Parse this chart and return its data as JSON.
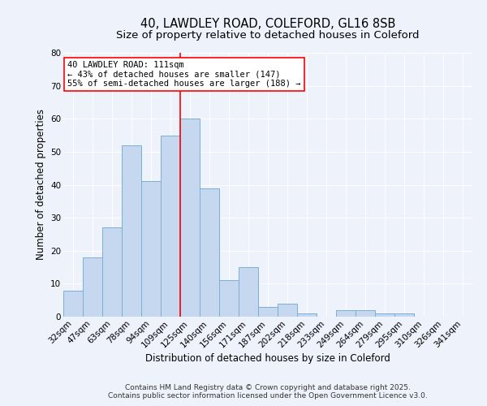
{
  "title_line1": "40, LAWDLEY ROAD, COLEFORD, GL16 8SB",
  "title_line2": "Size of property relative to detached houses in Coleford",
  "xlabel": "Distribution of detached houses by size in Coleford",
  "ylabel": "Number of detached properties",
  "categories": [
    "32sqm",
    "47sqm",
    "63sqm",
    "78sqm",
    "94sqm",
    "109sqm",
    "125sqm",
    "140sqm",
    "156sqm",
    "171sqm",
    "187sqm",
    "202sqm",
    "218sqm",
    "233sqm",
    "249sqm",
    "264sqm",
    "279sqm",
    "295sqm",
    "310sqm",
    "326sqm",
    "341sqm"
  ],
  "values": [
    8,
    18,
    27,
    52,
    41,
    55,
    60,
    39,
    11,
    15,
    3,
    4,
    1,
    0,
    2,
    2,
    1,
    1,
    0,
    0,
    0
  ],
  "bar_color": "#c5d8f0",
  "bar_edge_color": "#7aafd4",
  "vline_x": 5.5,
  "annotation_text": "40 LAWDLEY ROAD: 111sqm\n← 43% of detached houses are smaller (147)\n55% of semi-detached houses are larger (188) →",
  "annotation_box_color": "white",
  "annotation_box_edge_color": "red",
  "vline_color": "red",
  "ylim": [
    0,
    80
  ],
  "yticks": [
    0,
    10,
    20,
    30,
    40,
    50,
    60,
    70,
    80
  ],
  "background_color": "#eef2fb",
  "footer_line1": "Contains HM Land Registry data © Crown copyright and database right 2025.",
  "footer_line2": "Contains public sector information licensed under the Open Government Licence v3.0.",
  "title_fontsize": 10.5,
  "subtitle_fontsize": 9.5,
  "axis_label_fontsize": 8.5,
  "tick_fontsize": 7.5,
  "annotation_fontsize": 7.5,
  "footer_fontsize": 6.5
}
